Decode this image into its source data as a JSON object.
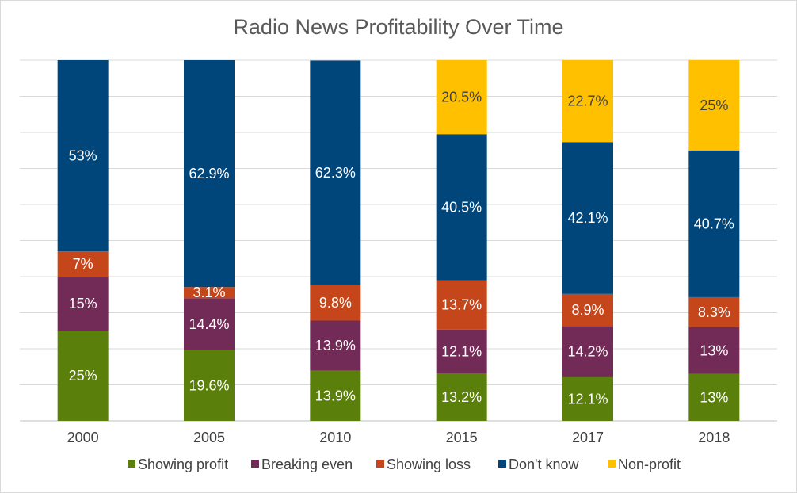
{
  "chart_data": {
    "type": "bar",
    "stacked": true,
    "title": "Radio News Profitability Over Time",
    "xlabel": "",
    "ylabel": "",
    "categories": [
      "2000",
      "2005",
      "2010",
      "2015",
      "2017",
      "2018"
    ],
    "ylim": [
      0,
      100
    ],
    "grid": true,
    "legend_position": "bottom",
    "series": [
      {
        "name": "Showing profit",
        "color": "#5b7f0b",
        "values": [
          25,
          19.6,
          13.9,
          13.2,
          12.1,
          13
        ],
        "labels": [
          "25%",
          "19.6%",
          "13.9%",
          "13.2%",
          "12.1%",
          "13%"
        ]
      },
      {
        "name": "Breaking even",
        "color": "#722a56",
        "values": [
          15,
          14.4,
          13.9,
          12.1,
          14.2,
          13
        ],
        "labels": [
          "15%",
          "14.4%",
          "13.9%",
          "12.1%",
          "14.2%",
          "13%"
        ]
      },
      {
        "name": "Showing loss",
        "color": "#c4461a",
        "values": [
          7,
          3.1,
          9.8,
          13.7,
          8.9,
          8.3
        ],
        "labels": [
          "7%",
          "3.1%",
          "9.8%",
          "13.7%",
          "8.9%",
          "8.3%"
        ]
      },
      {
        "name": "Don't know",
        "color": "#00467a",
        "values": [
          53,
          62.9,
          62.3,
          40.5,
          42.1,
          40.7
        ],
        "labels": [
          "53%",
          "62.9%",
          "62.3%",
          "40.5%",
          "42.1%",
          "40.7%"
        ]
      },
      {
        "name": "Non-profit",
        "color": "#ffc000",
        "values": [
          0,
          0,
          0,
          20.5,
          22.7,
          25
        ],
        "labels": [
          "",
          "",
          "",
          "20.5%",
          "22.7%",
          "25%"
        ],
        "label_color": "#404040"
      }
    ]
  }
}
